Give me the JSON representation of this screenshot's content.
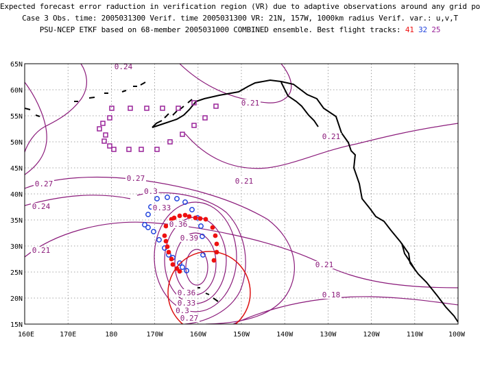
{
  "title": {
    "line1": "Expected forecast error raduction in verification region (VR) due to adaptive observations around any grid point.",
    "line2": "Case 3  Obs. time: 2005031300  Verif. time 2005031300  VR: 21N, 157W, 1000km radius  Verif. var.: u,v,T",
    "line3_prefix": "PSU-NCEP ETKF based on 68-member 2005031000 COMBINED ensemble.  Best flight tracks:",
    "tracks": [
      {
        "label": "41",
        "color": "#ee1111"
      },
      {
        "label": "32",
        "color": "#2244dd"
      },
      {
        "label": "25",
        "color": "#992299"
      }
    ]
  },
  "axes": {
    "lat_labels": [
      "65N",
      "60N",
      "55N",
      "50N",
      "45N",
      "40N",
      "35N",
      "30N",
      "25N",
      "20N",
      "15N"
    ],
    "lon_labels": [
      "160E",
      "170E",
      "180",
      "170W",
      "160W",
      "150W",
      "140W",
      "130W",
      "120W",
      "110W",
      "100W"
    ]
  },
  "contour_labels": [
    {
      "text": "0.24",
      "key": "a"
    },
    {
      "text": "0.21",
      "key": "b"
    },
    {
      "text": "0.21",
      "key": "c"
    },
    {
      "text": "0.21",
      "key": "d"
    },
    {
      "text": "0.27",
      "key": "e"
    },
    {
      "text": "0.27",
      "key": "f"
    },
    {
      "text": "0.24",
      "key": "g"
    },
    {
      "text": "0.21",
      "key": "h"
    },
    {
      "text": "0.3",
      "key": "i"
    },
    {
      "text": "0.33",
      "key": "j"
    },
    {
      "text": "0.36",
      "key": "k"
    },
    {
      "text": "0.39",
      "key": "l"
    },
    {
      "text": "0.21",
      "key": "m"
    },
    {
      "text": "0.18",
      "key": "n"
    },
    {
      "text": "0.36",
      "key": "o"
    },
    {
      "text": "0.33",
      "key": "p"
    },
    {
      "text": "0.3",
      "key": "q"
    },
    {
      "text": "0.27",
      "key": "r"
    }
  ],
  "colors": {
    "contour": "#8a1a7a",
    "coast": "#000000",
    "grid": "#888888",
    "verification_circle": "#dd1111"
  }
}
